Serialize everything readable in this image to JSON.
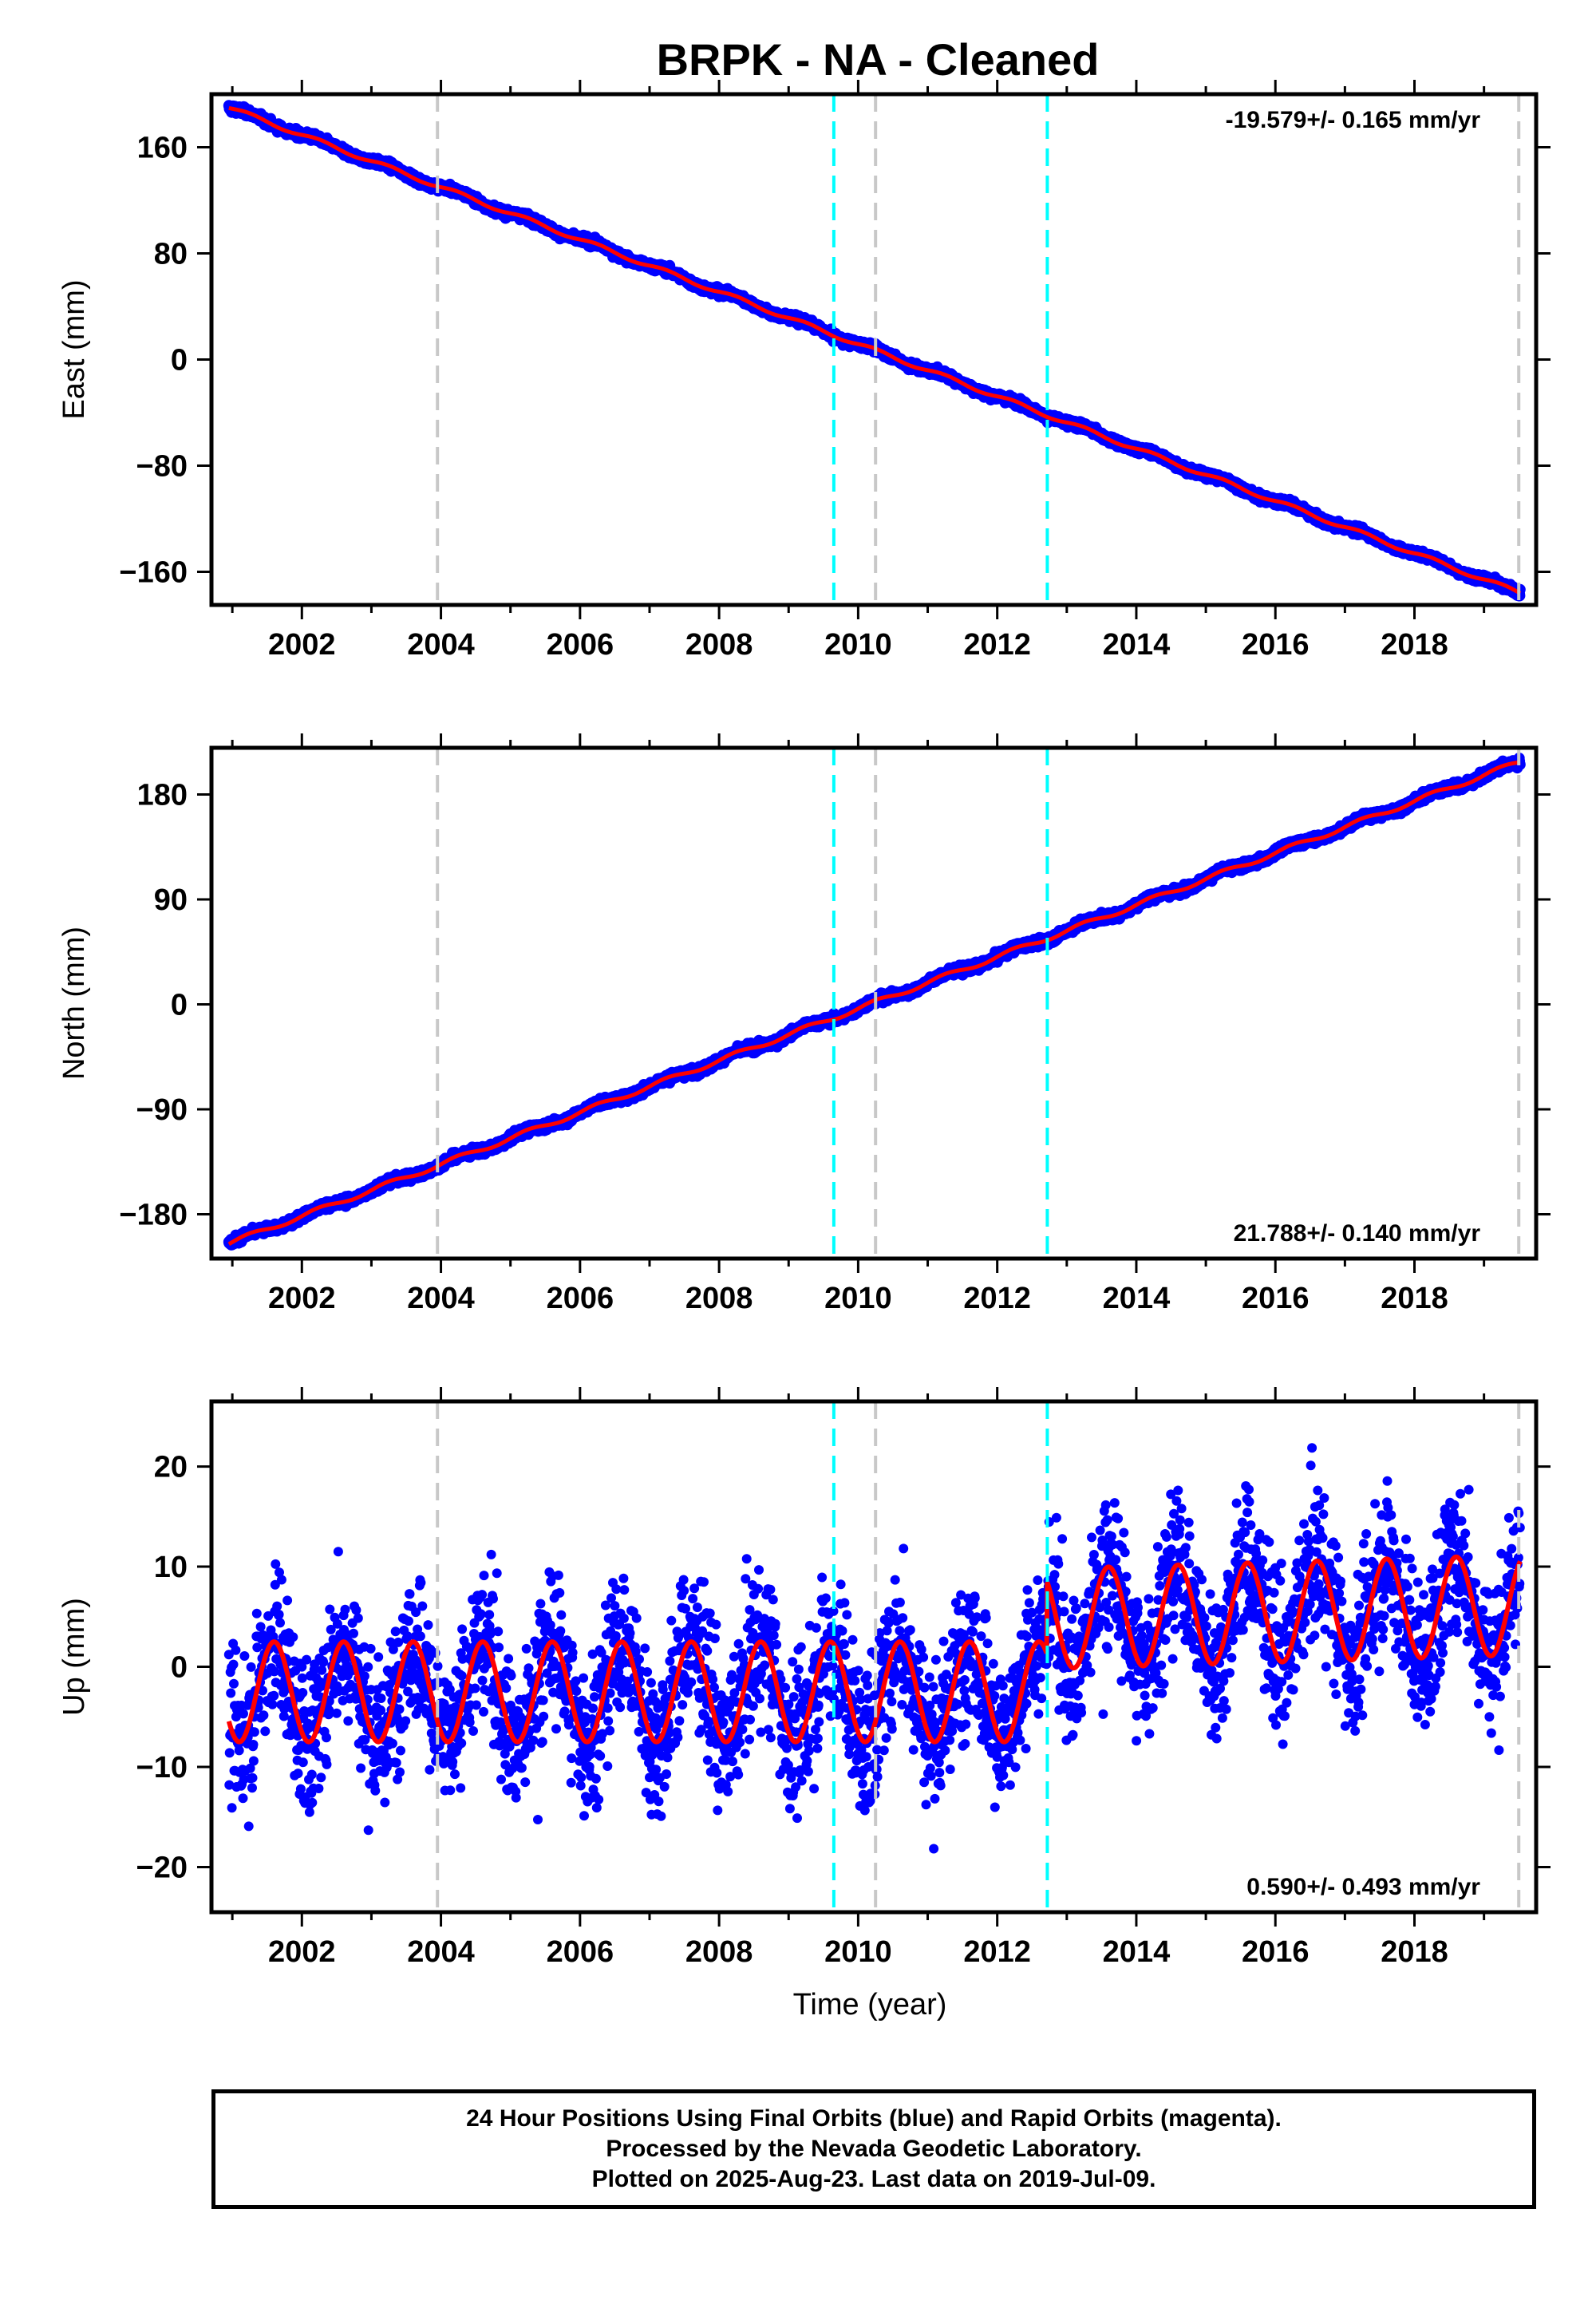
{
  "title": "BRPK  - NA - Cleaned",
  "footer": {
    "line1": "24 Hour Positions Using Final Orbits (blue) and Rapid Orbits (magenta).",
    "line2": "Processed by the Nevada Geodetic Laboratory.",
    "line3": "Plotted on 2025-Aug-23. Last data on 2019-Jul-09."
  },
  "colors": {
    "data": "#0000ff",
    "model": "#ff0000",
    "equipment_change": "#c8c8c8",
    "earthquake": "#00ffff"
  },
  "chart_data": [
    {
      "type": "scatter",
      "ylabel": "East (mm)",
      "xlabel": "",
      "xlim": [
        2000.7,
        2019.75
      ],
      "ylim": [
        -185,
        200
      ],
      "xticks": [
        2002,
        2004,
        2006,
        2008,
        2010,
        2012,
        2014,
        2016,
        2018
      ],
      "yticks": [
        160,
        80,
        0,
        -80,
        -160
      ],
      "rate_text": "-19.579+/- 0.165 mm/yr",
      "rate_position": "top-right",
      "series": [
        {
          "values": "daily positions",
          "x_start": 2000.95,
          "x_end": 2019.52,
          "start": 190,
          "end": -176,
          "seasonal_amp": 1.5,
          "noise": 2.5
        }
      ],
      "gray_dashed_x": [
        2003.95,
        2010.25,
        2019.5
      ],
      "cyan_dashed_x": [
        2009.65,
        2012.72
      ]
    },
    {
      "type": "scatter",
      "ylabel": "North (mm)",
      "xlabel": "",
      "xlim": [
        2000.7,
        2019.75
      ],
      "ylim": [
        -218,
        220
      ],
      "xticks": [
        2002,
        2004,
        2006,
        2008,
        2010,
        2012,
        2014,
        2016,
        2018
      ],
      "yticks": [
        180,
        90,
        0,
        -90,
        -180
      ],
      "rate_text": "21.788+/- 0.140 mm/yr",
      "rate_position": "bottom-right",
      "series": [
        {
          "values": "daily positions",
          "x_start": 2000.95,
          "x_end": 2019.52,
          "start": -205,
          "end": 208,
          "seasonal_amp": 2,
          "noise": 3
        }
      ],
      "gray_dashed_x": [
        2003.95,
        2010.25,
        2019.5
      ],
      "cyan_dashed_x": [
        2009.65,
        2012.72
      ]
    },
    {
      "type": "scatter",
      "ylabel": "Up (mm)",
      "xlabel": "Time (year)",
      "xlim": [
        2000.7,
        2019.75
      ],
      "ylim": [
        -24.5,
        26.5
      ],
      "xticks": [
        2002,
        2004,
        2006,
        2008,
        2010,
        2012,
        2014,
        2016,
        2018
      ],
      "yticks": [
        20,
        10,
        0,
        -10,
        -20
      ],
      "rate_text": "0.590+/- 0.493 mm/yr",
      "rate_position": "bottom-right",
      "series": [
        {
          "values": "daily positions",
          "x_start": 2000.95,
          "x_end": 2019.52,
          "offset_before_2012_7": -2.5,
          "offset_after_2012_7": 4.8,
          "seasonal_amp": 5,
          "noise": 4
        }
      ],
      "gray_dashed_x": [
        2003.95,
        2010.25,
        2019.5
      ],
      "cyan_dashed_x": [
        2009.65,
        2012.72
      ]
    }
  ]
}
